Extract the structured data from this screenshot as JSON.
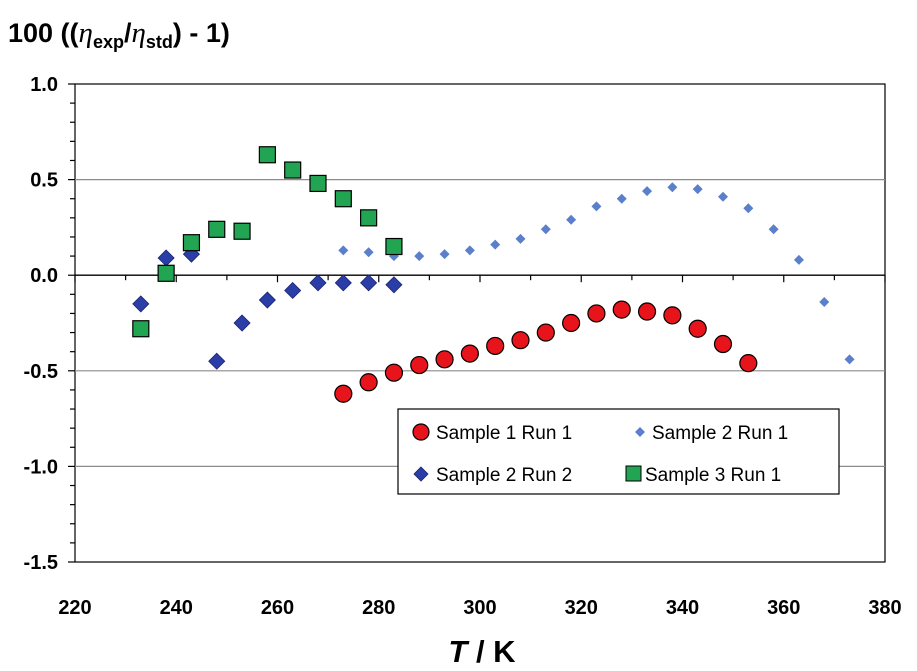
{
  "chart_data": {
    "type": "scatter",
    "title": "",
    "ylabel": {
      "prefix": "100 ((",
      "eta1": "η",
      "sub1": "exp",
      "slash": "/",
      "eta2": "η",
      "sub2": "std",
      "suffix": ") - 1)"
    },
    "xlabel": {
      "var": "T",
      "unit": " / K"
    },
    "xlim": [
      220,
      380
    ],
    "ylim": [
      -1.5,
      1.0
    ],
    "xticks": [
      "220",
      "240",
      "260",
      "280",
      "300",
      "320",
      "340",
      "360",
      "380"
    ],
    "yticks": [
      "1.0",
      "0.5",
      "0.0",
      "-0.5",
      "-1.0",
      "-1.5"
    ],
    "gridlines_y": [
      0.5,
      -0.5,
      -1.0
    ],
    "legend_position": "lower-right",
    "series": [
      {
        "name": "Sample 1 Run 1",
        "marker": "circle",
        "color": "#e8141b",
        "points": [
          [
            273,
            -0.62
          ],
          [
            278,
            -0.56
          ],
          [
            283,
            -0.51
          ],
          [
            288,
            -0.47
          ],
          [
            293,
            -0.44
          ],
          [
            298,
            -0.41
          ],
          [
            303,
            -0.37
          ],
          [
            308,
            -0.34
          ],
          [
            313,
            -0.3
          ],
          [
            318,
            -0.25
          ],
          [
            323,
            -0.2
          ],
          [
            328,
            -0.18
          ],
          [
            333,
            -0.19
          ],
          [
            338,
            -0.21
          ],
          [
            343,
            -0.28
          ],
          [
            348,
            -0.36
          ],
          [
            353,
            -0.46
          ]
        ]
      },
      {
        "name": "Sample 2 Run 1",
        "marker": "small-diamond",
        "color": "#5b7fcb",
        "points": [
          [
            273,
            0.13
          ],
          [
            278,
            0.12
          ],
          [
            283,
            0.1
          ],
          [
            288,
            0.1
          ],
          [
            293,
            0.11
          ],
          [
            298,
            0.13
          ],
          [
            303,
            0.16
          ],
          [
            308,
            0.19
          ],
          [
            313,
            0.24
          ],
          [
            318,
            0.29
          ],
          [
            323,
            0.36
          ],
          [
            328,
            0.4
          ],
          [
            333,
            0.44
          ],
          [
            338,
            0.46
          ],
          [
            343,
            0.45
          ],
          [
            348,
            0.41
          ],
          [
            353,
            0.35
          ],
          [
            358,
            0.24
          ],
          [
            363,
            0.08
          ],
          [
            368,
            -0.14
          ],
          [
            373,
            -0.44
          ]
        ]
      },
      {
        "name": "Sample 2 Run 2",
        "marker": "diamond",
        "color": "#2b3da6",
        "points": [
          [
            233,
            -0.15
          ],
          [
            238,
            0.09
          ],
          [
            243,
            0.11
          ],
          [
            248,
            -0.45
          ],
          [
            253,
            -0.25
          ],
          [
            258,
            -0.13
          ],
          [
            263,
            -0.08
          ],
          [
            268,
            -0.04
          ],
          [
            273,
            -0.04
          ],
          [
            278,
            -0.04
          ],
          [
            283,
            -0.05
          ]
        ]
      },
      {
        "name": "Sample 3 Run 1",
        "marker": "square",
        "color": "#22a552",
        "points": [
          [
            233,
            -0.28
          ],
          [
            238,
            0.01
          ],
          [
            243,
            0.17
          ],
          [
            248,
            0.24
          ],
          [
            253,
            0.23
          ],
          [
            258,
            0.63
          ],
          [
            263,
            0.55
          ],
          [
            268,
            0.48
          ],
          [
            273,
            0.4
          ],
          [
            278,
            0.3
          ],
          [
            283,
            0.15
          ]
        ]
      }
    ]
  }
}
